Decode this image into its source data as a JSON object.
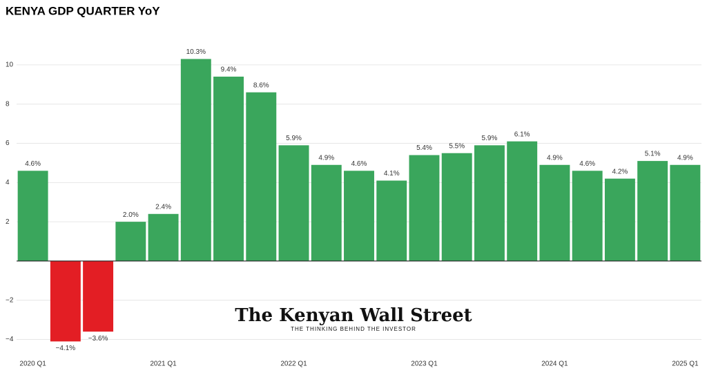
{
  "chart_data": {
    "type": "bar",
    "title": "KENYA GDP QUARTER YoY",
    "categories": [
      "2020 Q1",
      null,
      null,
      null,
      "2021 Q1",
      null,
      null,
      null,
      "2022 Q1",
      null,
      null,
      null,
      "2023 Q1",
      null,
      null,
      null,
      "2024 Q1",
      null,
      null,
      null,
      "2025 Q1"
    ],
    "values": [
      4.6,
      -4.1,
      -3.6,
      2.0,
      2.4,
      10.3,
      9.4,
      8.6,
      5.9,
      4.9,
      4.6,
      4.1,
      5.4,
      5.5,
      5.9,
      6.1,
      4.9,
      4.6,
      4.2,
      5.1,
      4.9
    ],
    "value_labels": [
      "4.6%",
      "−4.1%",
      "−3.6%",
      "2.0%",
      "2.4%",
      "10.3%",
      "9.4%",
      "8.6%",
      "5.9%",
      "4.9%",
      "4.6%",
      "4.1%",
      "5.4%",
      "5.5%",
      "5.9%",
      "6.1%",
      "4.9%",
      "4.6%",
      "4.2%",
      "5.1%",
      "4.9%"
    ],
    "positive_color": "#3aa65c",
    "negative_color": "#e31e24",
    "ylim": [
      -4.6,
      11.3
    ],
    "yticks": [
      {
        "value": -4,
        "label": "−4"
      },
      {
        "value": -2,
        "label": "−2"
      },
      2,
      4,
      6,
      8,
      10
    ],
    "grid": true
  },
  "watermark": {
    "title": "The Kenyan Wall Street",
    "tagline": "THE THINKING BEHIND THE INVESTOR"
  }
}
